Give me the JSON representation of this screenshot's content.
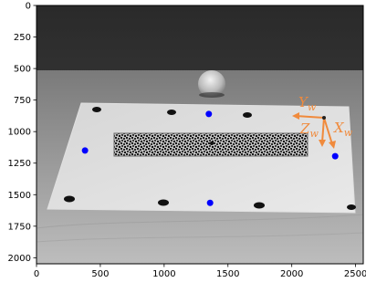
{
  "x_axis": {
    "ticks": [
      "0",
      "500",
      "1000",
      "1500",
      "2000",
      "2500"
    ]
  },
  "y_axis": {
    "ticks": [
      "0",
      "250",
      "500",
      "750",
      "1000",
      "1250",
      "1500",
      "1750",
      "2000"
    ]
  },
  "chart_data": {
    "type": "scatter",
    "xlim": [
      0,
      2560
    ],
    "ylim": [
      2048,
      0
    ],
    "series": [
      {
        "color": "#0000ff",
        "points": [
          [
            1350,
            860
          ],
          [
            2340,
            1195
          ],
          [
            380,
            1150
          ],
          [
            1360,
            1565
          ]
        ]
      }
    ]
  },
  "frame_axes": {
    "color": "#f08a3c",
    "labels": [
      {
        "id": "y",
        "base": "Y",
        "sub": "w"
      },
      {
        "id": "z",
        "base": "Z",
        "sub": "w"
      },
      {
        "id": "x",
        "base": "X",
        "sub": "w"
      }
    ]
  },
  "photo": {
    "background_tone": "dark wall",
    "table_tone": "wood",
    "board_tone": "white sheet",
    "specimen": "speckle-patterned bar",
    "object": "sphere"
  }
}
